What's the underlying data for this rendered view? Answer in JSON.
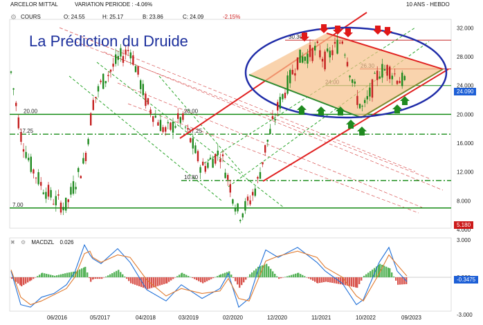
{
  "header": {
    "instrument": "ARCELOR MITTAL",
    "variation_label": "VARIATION PERIODE : -4.06%",
    "period": "10 ANS - HEBDO"
  },
  "quote": {
    "label": "COURS",
    "open": "O: 24.55",
    "high": "H: 25.17",
    "low": "B: 23.86",
    "close": "C: 24.09",
    "change": "-2.15%"
  },
  "title": "La Prédiction du Druide",
  "price_axis": {
    "ticks": [
      "32.000",
      "28.000",
      "24.000",
      "20.000",
      "16.000",
      "12.000",
      "8.000",
      "4.000"
    ]
  },
  "badges": {
    "last_price": "24.090",
    "low_price": "5.180",
    "macd_value": "-0.3475"
  },
  "level_labels": [
    {
      "text": "20.00",
      "value": 20
    },
    {
      "text": "17.25",
      "value": 17.25
    },
    {
      "text": "7.00",
      "value": 7
    },
    {
      "text": "20.00",
      "value": 20
    },
    {
      "text": "17.25",
      "value": 17.25
    },
    {
      "text": "10.80",
      "value": 10.8
    },
    {
      "text": "30.30",
      "value": 30.3
    },
    {
      "text": "26.30",
      "value": 26.3
    },
    {
      "text": "24.00",
      "value": 24
    }
  ],
  "macd": {
    "label": "MACDZL",
    "value": "0.026",
    "ticks": [
      "3.000",
      "0.000",
      "-3.000"
    ]
  },
  "x_axis": {
    "labels": [
      "06/2016",
      "05/2017",
      "04/2018",
      "03/2019",
      "02/2020",
      "12/2020",
      "11/2021",
      "10/2022",
      "09/2023"
    ]
  },
  "colors": {
    "up_candle": "#1f8a1f",
    "down_candle": "#c42020",
    "title": "#1c2f9c",
    "support": "#138a13",
    "trend_red": "#e02020",
    "ellipse": "#1f2ca8",
    "badge_blue": "#1d5fd6",
    "badge_red": "#cc1a1a",
    "triangle_fill": "#f6c08a"
  },
  "chart_data": [
    {
      "type": "candlestick",
      "title": "La Prédiction du Druide",
      "xlabel": "",
      "ylabel": "",
      "ylim": [
        4,
        33
      ],
      "x": [
        "2013-09",
        "2014-03",
        "2014-09",
        "2015-03",
        "2015-09",
        "2016-03",
        "2016-06",
        "2016-09",
        "2017-03",
        "2017-05",
        "2017-09",
        "2018-01",
        "2018-04",
        "2018-09",
        "2019-01",
        "2019-03",
        "2019-09",
        "2020-01",
        "2020-02",
        "2020-03",
        "2020-06",
        "2020-09",
        "2020-12",
        "2021-03",
        "2021-06",
        "2021-09",
        "2021-11",
        "2022-02",
        "2022-06",
        "2022-10",
        "2023-01",
        "2023-04",
        "2023-06",
        "2023-09"
      ],
      "close": [
        25.8,
        17.2,
        13.0,
        10.2,
        8.1,
        7.2,
        10.5,
        13.4,
        18.5,
        21.5,
        24.2,
        27.5,
        29.2,
        21.5,
        17.5,
        19.5,
        12.5,
        14.8,
        11.0,
        6.0,
        7.8,
        10.4,
        15.5,
        21.0,
        27.5,
        29.0,
        27.5,
        30.5,
        22.5,
        20.5,
        26.0,
        26.3,
        25.2,
        24.09
      ],
      "levels": [
        30.3,
        26.3,
        24.0,
        20.0,
        17.25,
        10.8,
        7.0
      ]
    },
    {
      "type": "line",
      "title": "MACDZL",
      "ylim": [
        -3,
        3.3
      ],
      "x": [
        "2013-09",
        "2014-03",
        "2014-09",
        "2015-03",
        "2015-09",
        "2016-03",
        "2016-06",
        "2016-09",
        "2017-03",
        "2017-05",
        "2017-09",
        "2018-01",
        "2018-04",
        "2018-09",
        "2019-01",
        "2019-03",
        "2019-09",
        "2020-01",
        "2020-02",
        "2020-03",
        "2020-06",
        "2020-09",
        "2020-12",
        "2021-03",
        "2021-06",
        "2021-09",
        "2021-11",
        "2022-02",
        "2022-06",
        "2022-10",
        "2023-01",
        "2023-04",
        "2023-06",
        "2023-09"
      ],
      "series": [
        {
          "name": "",
          "values": [
            0.5,
            -2.2,
            -2.4,
            -1.6,
            -1.3,
            -0.6,
            0.4,
            2.6,
            1.8,
            1.5,
            1.1,
            2.3,
            1.2,
            -1.0,
            -1.9,
            -0.6,
            -1.7,
            -0.9,
            0.3,
            -2.4,
            -1.7,
            0.4,
            2.2,
            1.6,
            2.4,
            1.2,
            0.5,
            -0.5,
            -2.2,
            -1.8,
            1.2,
            2.4,
            0.5,
            -0.35
          ]
        },
        {
          "name": "",
          "values": [
            0.6,
            -1.6,
            -2.2,
            -1.9,
            -1.4,
            -0.9,
            0.0,
            1.9,
            2.1,
            1.6,
            1.2,
            1.8,
            1.6,
            -0.2,
            -1.5,
            -0.9,
            -1.3,
            -1.1,
            -0.1,
            -1.7,
            -1.9,
            -0.3,
            1.3,
            1.7,
            2.1,
            1.6,
            0.8,
            0.0,
            -1.5,
            -1.9,
            0.3,
            1.8,
            1.0,
            0.1
          ]
        }
      ]
    }
  ]
}
